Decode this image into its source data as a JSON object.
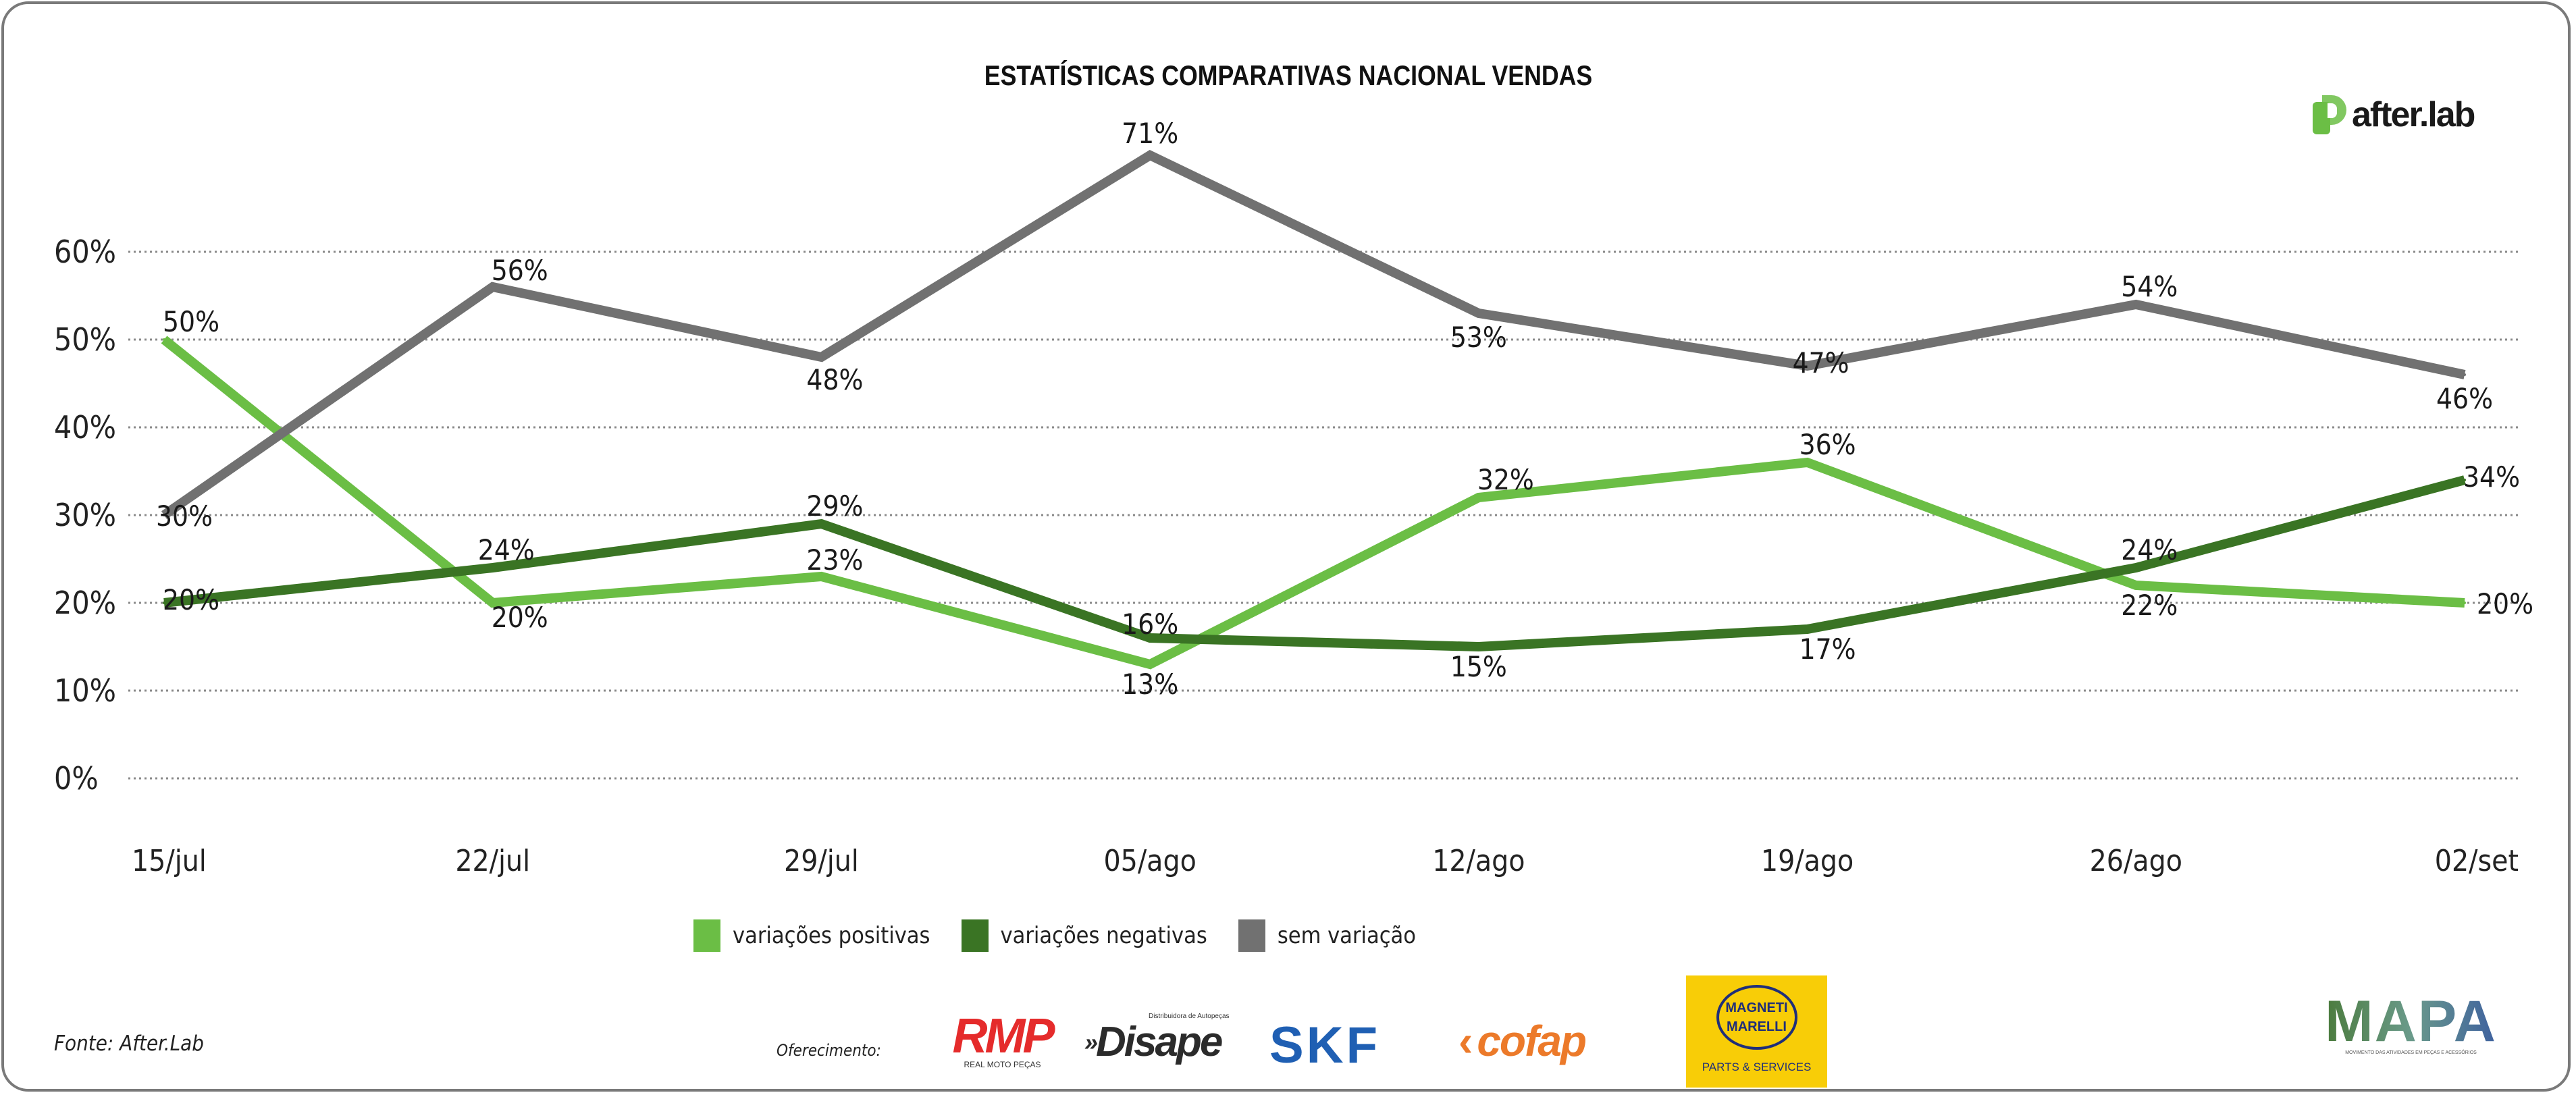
{
  "chart_data": {
    "type": "line",
    "title": "ESTATÍSTICAS COMPARATIVAS NACIONAL VENDAS",
    "xlabel": "",
    "ylabel": "",
    "categories": [
      "15/jul",
      "22/jul",
      "29/jul",
      "05/ago",
      "12/ago",
      "19/ago",
      "26/ago",
      "02/set"
    ],
    "y_ticks": [
      "0%",
      "10%",
      "20%",
      "30%",
      "40%",
      "50%",
      "60%"
    ],
    "ylim": [
      0,
      60
    ],
    "grid": true,
    "legend_position": "bottom",
    "series": [
      {
        "name": "variações positivas",
        "color": "#6BBE45",
        "values": [
          50,
          20,
          23,
          13,
          32,
          36,
          22,
          20
        ],
        "labels": [
          "50%",
          "20%",
          "23%",
          "13%",
          "32%",
          "36%",
          "22%",
          "20%"
        ]
      },
      {
        "name": "variações negativas",
        "color": "#3A7424",
        "values": [
          20,
          24,
          29,
          16,
          15,
          17,
          24,
          34
        ],
        "labels": [
          "20%",
          "24%",
          "29%",
          "16%",
          "15%",
          "17%",
          "24%",
          "34%"
        ]
      },
      {
        "name": "sem variação",
        "color": "#717171",
        "values": [
          30,
          56,
          48,
          71,
          53,
          47,
          54,
          46
        ],
        "labels": [
          "30%",
          "56%",
          "48%",
          "71%",
          "53%",
          "47%",
          "54%",
          "46%"
        ]
      }
    ]
  },
  "brand": {
    "name": "after.lab",
    "color": "#6BBE45"
  },
  "footer": {
    "source": "Fonte: After.Lab",
    "sponsored_by": "Oferecimento:",
    "sponsors": {
      "rmp": "RMP",
      "rmp_sub": "REAL MOTO PEÇAS",
      "disape": "Disape",
      "disape_sub": "Distribuidora de Autopeças",
      "skf": "SKF",
      "cofap": "cofap",
      "magneti_1": "MAGNETI",
      "magneti_2": "MARELLI",
      "magneti_sub": "PARTS & SERVICES",
      "mapa": "MAPA",
      "mapa_sub": "MOVIMENTO DAS ATIVIDADES EM PEÇAS E ACESSÓRIOS"
    }
  }
}
